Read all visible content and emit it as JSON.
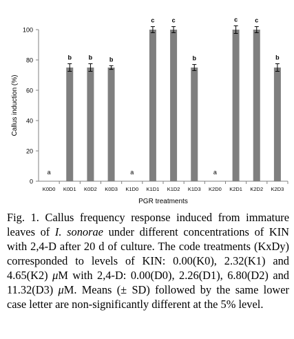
{
  "chart_data": {
    "type": "bar",
    "ylabel": "Callus induction (%)",
    "xlabel": "PGR treatments",
    "ylim": [
      0,
      100
    ],
    "yticks": [
      0,
      20,
      40,
      60,
      80,
      100
    ],
    "categories": [
      "K0D0",
      "K0D1",
      "K0D2",
      "K0D3",
      "K1D0",
      "K1D1",
      "K1D2",
      "K1D3",
      "K2D0",
      "K2D1",
      "K2D2",
      "K2D3"
    ],
    "values": [
      0,
      75,
      75,
      75,
      0,
      100,
      100,
      75,
      0,
      100,
      100,
      75
    ],
    "errors": [
      0,
      2.5,
      2.5,
      1.2,
      0,
      2.0,
      2.0,
      2.0,
      0,
      2.5,
      2.0,
      2.5
    ],
    "letters": [
      "a",
      "b",
      "b",
      "b",
      "a",
      "c",
      "c",
      "b",
      "a",
      "c",
      "c",
      "b"
    ],
    "bar_color": "#7f7f7f",
    "grid": false
  },
  "caption": {
    "prefix": "Fig. 1. Callus frequency response induced from immature leaves of ",
    "species": "I. sonorae",
    "middle": " under different concentrations of KIN with 2,4-D after 20 d of culture. The code treatments (KxDy) corresponded to levels of KIN: 0.00(K0), 2.32(K1) and 4.65(K2) ",
    "mu1": "μ",
    "m1": "M with 2,4-D: 0.00(D0), 2.26(D1), 6.80(D2) and 11.32(D3) ",
    "mu2": "μ",
    "m2": "M. Means (± SD) followed by the same lower case letter are non-significantly different at the 5% level."
  }
}
